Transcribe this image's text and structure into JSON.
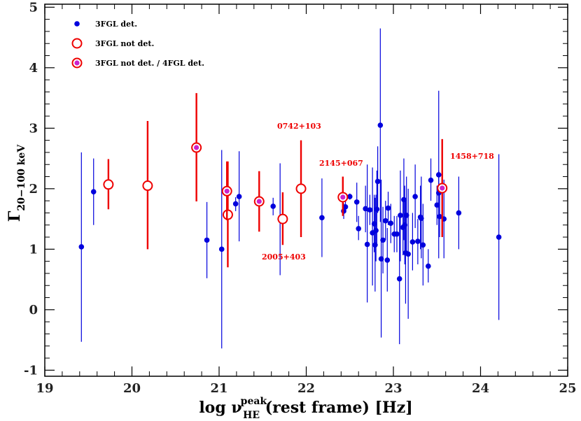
{
  "chart_data": {
    "type": "scatter",
    "xlabel": {
      "main": "log ν",
      "sup": "peak",
      "sub": "HE",
      "rest": " (rest frame) [Hz]"
    },
    "ylabel": {
      "main": "Γ",
      "sub": "20−100 keV"
    },
    "xlim": [
      19,
      25
    ],
    "ylim": [
      -1.1,
      5.05
    ],
    "xticks": [
      19,
      20,
      21,
      22,
      23,
      24,
      25
    ],
    "yticks": [
      -1,
      0,
      1,
      2,
      3,
      4,
      5
    ],
    "colors": {
      "det": "#0000dd",
      "notdet": "#ee0000",
      "fill4fgl": "#cc22cc"
    },
    "legend": [
      {
        "label": "3FGL det.",
        "marker": "filled-dot"
      },
      {
        "label": "3FGL not det.",
        "marker": "open-circle"
      },
      {
        "label": "3FGL not det. / 4FGL det.",
        "marker": "open-circle-filled"
      }
    ],
    "annotations": [
      {
        "text": "0742+103"
      },
      {
        "text": "2145+067"
      },
      {
        "text": "1458+718"
      },
      {
        "text": "2005+403"
      }
    ],
    "series": [
      {
        "name": "3FGL det.",
        "points": [
          {
            "x": 19.42,
            "y": 1.04,
            "lo": -0.53,
            "hi": 2.6
          },
          {
            "x": 19.56,
            "y": 1.95,
            "lo": 1.4,
            "hi": 2.5
          },
          {
            "x": 20.86,
            "y": 1.15,
            "lo": 0.52,
            "hi": 1.78
          },
          {
            "x": 21.03,
            "y": 1.0,
            "lo": -0.64,
            "hi": 2.64
          },
          {
            "x": 21.19,
            "y": 1.75,
            "lo": 1.63,
            "hi": 1.86
          },
          {
            "x": 21.23,
            "y": 1.87,
            "lo": 1.13,
            "hi": 2.62
          },
          {
            "x": 21.62,
            "y": 1.71,
            "lo": 1.56,
            "hi": 1.85
          },
          {
            "x": 21.7,
            "y": 1.5,
            "lo": 0.57,
            "hi": 2.42
          },
          {
            "x": 22.18,
            "y": 1.52,
            "lo": 0.87,
            "hi": 2.17
          },
          {
            "x": 22.43,
            "y": 1.63,
            "lo": 1.5,
            "hi": 1.76
          },
          {
            "x": 22.45,
            "y": 1.7,
            "lo": 1.6,
            "hi": 1.8
          },
          {
            "x": 22.5,
            "y": 1.87,
            "lo": 1.82,
            "hi": 1.92
          },
          {
            "x": 22.58,
            "y": 1.78,
            "lo": 1.45,
            "hi": 2.1
          },
          {
            "x": 22.6,
            "y": 1.34,
            "lo": 1.15,
            "hi": 1.55
          },
          {
            "x": 22.68,
            "y": 1.67,
            "lo": 1.28,
            "hi": 2.05
          },
          {
            "x": 22.7,
            "y": 1.08,
            "lo": 0.12,
            "hi": 2.4
          },
          {
            "x": 22.73,
            "y": 1.65,
            "lo": 1.4,
            "hi": 1.9
          },
          {
            "x": 22.76,
            "y": 1.27,
            "lo": 0.4,
            "hi": 2.35
          },
          {
            "x": 22.78,
            "y": 1.42,
            "lo": 0.95,
            "hi": 1.9
          },
          {
            "x": 22.79,
            "y": 1.07,
            "lo": 0.3,
            "hi": 1.85
          },
          {
            "x": 22.8,
            "y": 1.31,
            "lo": 0.8,
            "hi": 1.9
          },
          {
            "x": 22.81,
            "y": 1.66,
            "lo": 1.05,
            "hi": 2.3
          },
          {
            "x": 22.82,
            "y": 2.12,
            "lo": 1.6,
            "hi": 2.7
          },
          {
            "x": 22.85,
            "y": 3.05,
            "lo": 1.45,
            "hi": 4.65
          },
          {
            "x": 22.86,
            "y": 0.84,
            "lo": -0.46,
            "hi": 2.15
          },
          {
            "x": 22.88,
            "y": 1.15,
            "lo": 0.6,
            "hi": 1.7
          },
          {
            "x": 22.91,
            "y": 1.47,
            "lo": 1.15,
            "hi": 1.8
          },
          {
            "x": 22.93,
            "y": 0.82,
            "lo": 0.3,
            "hi": 1.35
          },
          {
            "x": 22.94,
            "y": 1.68,
            "lo": 1.4,
            "hi": 1.95
          },
          {
            "x": 22.97,
            "y": 1.43,
            "lo": 1.1,
            "hi": 1.75
          },
          {
            "x": 23.01,
            "y": 1.25,
            "lo": 0.95,
            "hi": 1.55
          },
          {
            "x": 23.04,
            "y": 1.25,
            "lo": 0.95,
            "hi": 1.55
          },
          {
            "x": 23.07,
            "y": 0.51,
            "lo": -0.57,
            "hi": 1.6
          },
          {
            "x": 23.08,
            "y": 1.56,
            "lo": 0.8,
            "hi": 2.3
          },
          {
            "x": 23.11,
            "y": 1.36,
            "lo": 0.9,
            "hi": 1.8
          },
          {
            "x": 23.12,
            "y": 1.82,
            "lo": 1.15,
            "hi": 2.5
          },
          {
            "x": 23.13,
            "y": 1.4,
            "lo": 0.75,
            "hi": 2.05
          },
          {
            "x": 23.14,
            "y": 0.94,
            "lo": 0.1,
            "hi": 1.8
          },
          {
            "x": 23.15,
            "y": 1.56,
            "lo": 0.9,
            "hi": 2.2
          },
          {
            "x": 23.17,
            "y": 0.92,
            "lo": -0.15,
            "hi": 2.0
          },
          {
            "x": 23.22,
            "y": 1.12,
            "lo": 0.65,
            "hi": 1.6
          },
          {
            "x": 23.25,
            "y": 1.87,
            "lo": 1.35,
            "hi": 2.4
          },
          {
            "x": 23.28,
            "y": 1.13,
            "lo": 0.75,
            "hi": 1.5
          },
          {
            "x": 23.31,
            "y": 1.53,
            "lo": 1.0,
            "hi": 2.05
          },
          {
            "x": 23.32,
            "y": 1.51,
            "lo": 0.85,
            "hi": 2.2
          },
          {
            "x": 23.34,
            "y": 1.07,
            "lo": 0.4,
            "hi": 1.75
          },
          {
            "x": 23.4,
            "y": 0.72,
            "lo": 0.45,
            "hi": 1.0
          },
          {
            "x": 23.43,
            "y": 2.14,
            "lo": 1.8,
            "hi": 2.5
          },
          {
            "x": 23.5,
            "y": 1.73,
            "lo": 1.4,
            "hi": 2.05
          },
          {
            "x": 23.52,
            "y": 1.93,
            "lo": 1.55,
            "hi": 2.3
          },
          {
            "x": 23.52,
            "y": 2.23,
            "lo": 0.85,
            "hi": 3.62
          },
          {
            "x": 23.53,
            "y": 1.54,
            "lo": 1.2,
            "hi": 1.9
          },
          {
            "x": 23.58,
            "y": 1.5,
            "lo": 0.85,
            "hi": 2.15
          },
          {
            "x": 23.75,
            "y": 1.6,
            "lo": 1.0,
            "hi": 2.2
          },
          {
            "x": 24.21,
            "y": 1.2,
            "lo": -0.17,
            "hi": 2.57
          }
        ]
      },
      {
        "name": "3FGL not det.",
        "points": [
          {
            "x": 19.73,
            "y": 2.07,
            "lo": 1.66,
            "hi": 2.49
          },
          {
            "x": 20.18,
            "y": 2.05,
            "lo": 1.0,
            "hi": 3.12
          },
          {
            "x": 21.1,
            "y": 1.57,
            "lo": 0.7,
            "hi": 2.45
          },
          {
            "x": 21.73,
            "y": 1.5,
            "lo": 1.07,
            "hi": 1.94
          },
          {
            "x": 21.94,
            "y": 2.0,
            "lo": 1.2,
            "hi": 2.8
          }
        ]
      },
      {
        "name": "3FGL not det. / 4FGL det.",
        "points": [
          {
            "x": 20.74,
            "y": 2.68,
            "lo": 1.79,
            "hi": 3.58
          },
          {
            "x": 21.09,
            "y": 1.96,
            "lo": 1.48,
            "hi": 2.45
          },
          {
            "x": 21.46,
            "y": 1.79,
            "lo": 1.29,
            "hi": 2.29
          },
          {
            "x": 22.42,
            "y": 1.86,
            "lo": 1.55,
            "hi": 2.2
          },
          {
            "x": 23.56,
            "y": 2.01,
            "lo": 1.2,
            "hi": 2.82
          }
        ]
      }
    ]
  }
}
